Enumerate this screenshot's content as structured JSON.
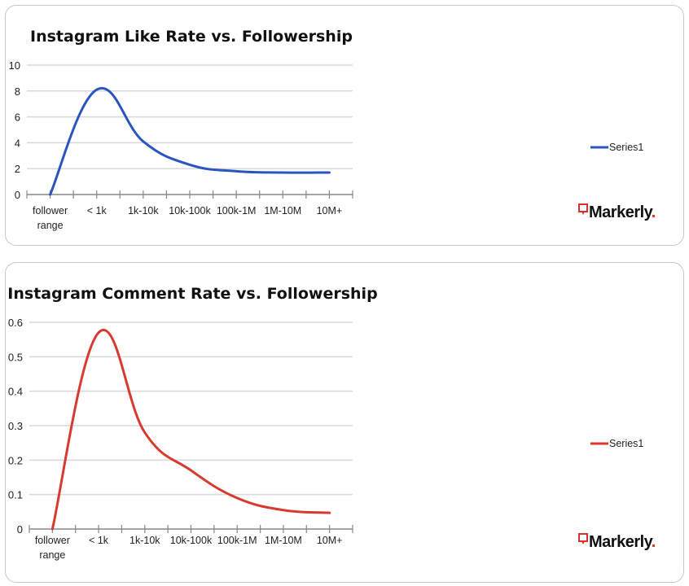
{
  "chart_data": [
    {
      "type": "line",
      "title": "Instagram Like Rate vs. Followership",
      "categories": [
        "follower range",
        "< 1k",
        "1k-10k",
        "10k-100k",
        "100k-1M",
        "1M-10M",
        "10M+"
      ],
      "series": [
        {
          "name": "Series1",
          "values": [
            0,
            8.1,
            4.1,
            2.3,
            1.8,
            1.7,
            1.7
          ],
          "color": "#2a55c0"
        }
      ],
      "yticks": [
        "0",
        "2",
        "4",
        "6",
        "8",
        "10"
      ],
      "ylim": [
        0,
        10
      ],
      "grid": true,
      "smooth": true,
      "legend": "right",
      "logo": "Markerly."
    },
    {
      "type": "line",
      "title": "Instagram Comment Rate vs. Followership",
      "categories": [
        "follower range",
        "< 1k",
        "1k-10k",
        "10k-100k",
        "100k-1M",
        "1M-10M",
        "10M+"
      ],
      "series": [
        {
          "name": "Series1",
          "values": [
            0,
            0.57,
            0.28,
            0.17,
            0.09,
            0.055,
            0.047
          ],
          "color": "#d93a2f"
        }
      ],
      "yticks": [
        "0",
        "0.1",
        "0.2",
        "0.3",
        "0.4",
        "0.5",
        "0.6"
      ],
      "ylim": [
        0,
        0.6
      ],
      "grid": true,
      "smooth": true,
      "legend": "right",
      "logo": "Markerly."
    }
  ]
}
